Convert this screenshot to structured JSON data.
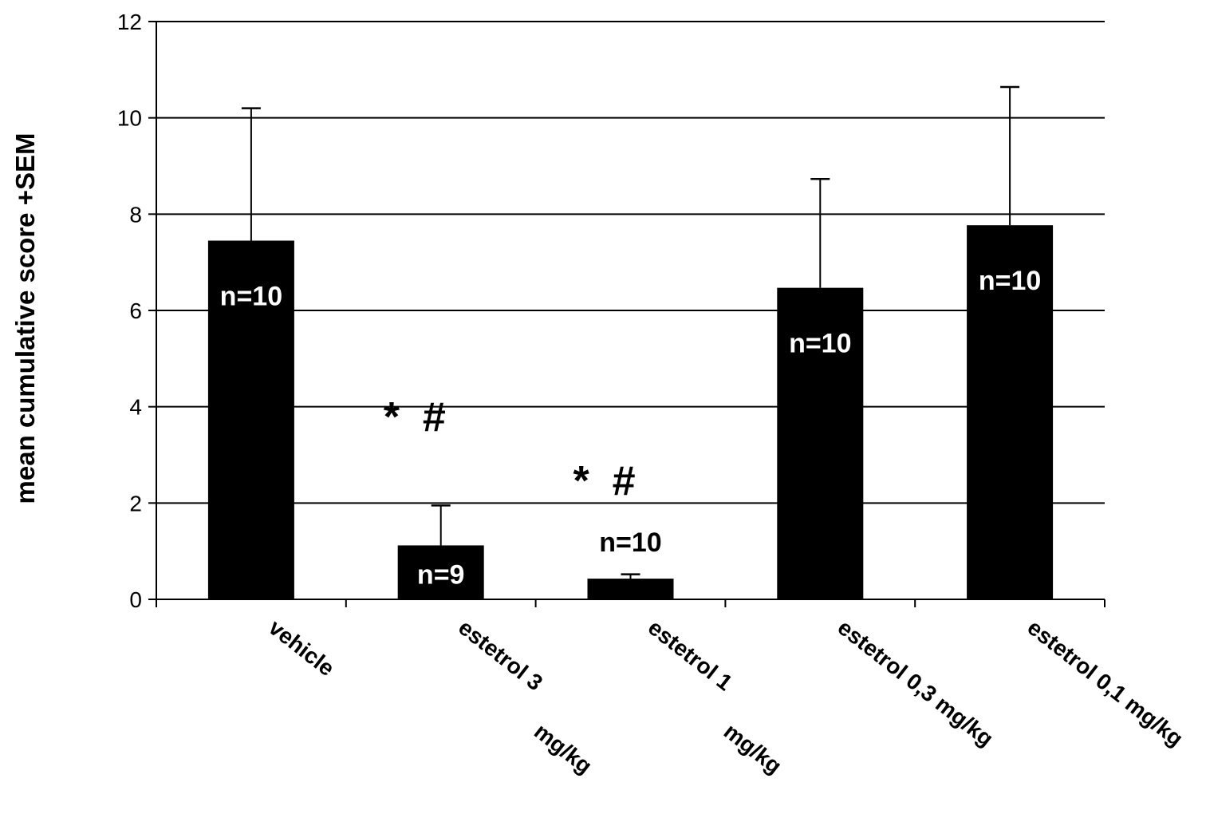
{
  "chart_data": {
    "type": "bar",
    "title": "",
    "xlabel": "",
    "ylabel": "mean cumulative score +SEM",
    "ylim": [
      0,
      12
    ],
    "yticks": [
      0,
      2,
      4,
      6,
      8,
      10,
      12
    ],
    "grid": true,
    "legend": "none",
    "colors": {
      "bar": "#000000",
      "grid": "#000000",
      "background": "#ffffff"
    },
    "categories": [
      {
        "lines": [
          "vehicle"
        ]
      },
      {
        "lines": [
          "estetrol 3",
          "mg/kg"
        ]
      },
      {
        "lines": [
          "estetrol 1",
          "mg/kg"
        ]
      },
      {
        "lines": [
          "estetrol 0,3 mg/kg"
        ]
      },
      {
        "lines": [
          "estetrol 0,1 mg/kg"
        ]
      }
    ],
    "values": [
      7.45,
      1.12,
      0.43,
      6.47,
      7.77
    ],
    "errors": [
      2.75,
      0.83,
      0.09,
      2.26,
      2.87
    ],
    "bar_labels": [
      "n=10",
      "n=9",
      "n=10",
      "n=10",
      "n=10"
    ],
    "significance": [
      "",
      "* #",
      "* #",
      "",
      ""
    ]
  }
}
